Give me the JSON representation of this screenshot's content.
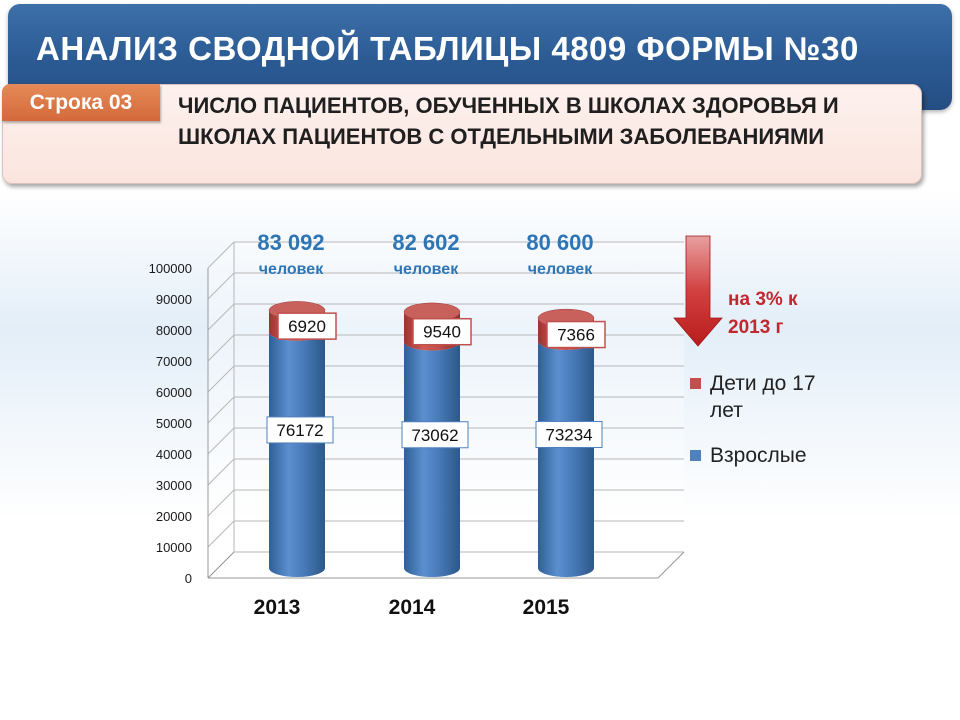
{
  "header": {
    "title": "АНАЛИЗ СВОДНОЙ ТАБЛИЦЫ 4809 ФОРМЫ №30",
    "row_tag": "Строка 03",
    "subtitle": "ЧИСЛО ПАЦИЕНТОВ, ОБУЧЕННЫХ В ШКОЛАХ ЗДОРОВЬЯ И ШКОЛАХ ПАЦИЕНТОВ С ОТДЕЛЬНЫМИ ЗАБОЛЕВАНИЯМИ"
  },
  "note": "на 3% к 2013 г",
  "colors": {
    "adults": "#4f81bd",
    "children": "#c0504d",
    "title_bar": "#2b5a93",
    "row_tag": "#d97040",
    "totals": "#2e75b6",
    "arrow": "#c0282d"
  },
  "chart_data": {
    "type": "bar",
    "stacked": true,
    "three_d": true,
    "categories": [
      "2013",
      "2014",
      "2015"
    ],
    "series": [
      {
        "name": "Взрослые",
        "values": [
          76172,
          73062,
          73234
        ]
      },
      {
        "name": "Дети до 17 лет",
        "values": [
          6920,
          9540,
          7366
        ]
      }
    ],
    "totals": [
      {
        "value": "83 092",
        "unit": "человек"
      },
      {
        "value": "82 602",
        "unit": "человек"
      },
      {
        "value": "80 600",
        "unit": "человек"
      }
    ],
    "y_ticks": [
      "0",
      "10000",
      "20000",
      "30000",
      "40000",
      "50000",
      "60000",
      "70000",
      "80000",
      "90000",
      "100000"
    ],
    "ylim": [
      0,
      100000
    ],
    "grid": true,
    "legend_position": "right"
  }
}
